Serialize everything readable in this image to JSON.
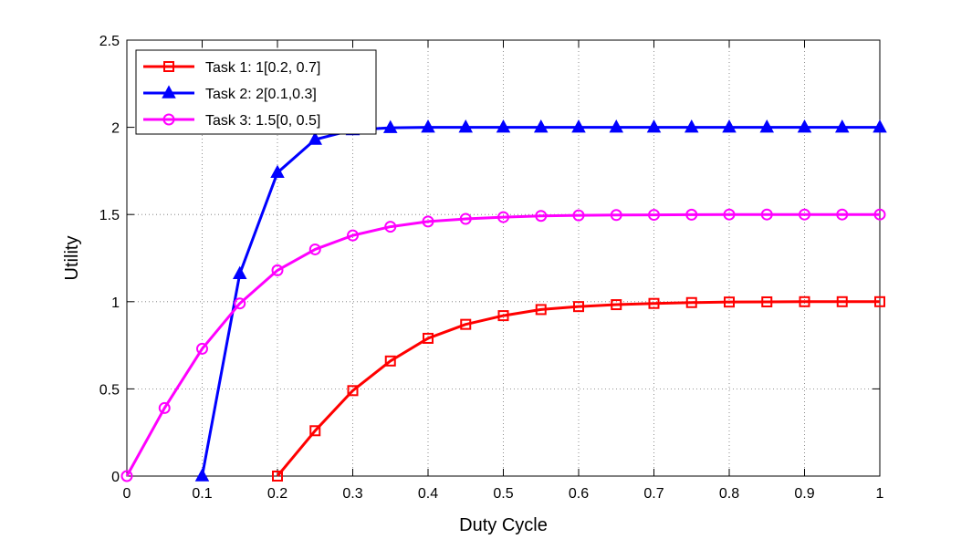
{
  "chart_data": {
    "type": "line",
    "xlabel": "Duty Cycle",
    "ylabel": "Utility",
    "xlim": [
      0,
      1
    ],
    "ylim": [
      0,
      2.5
    ],
    "x_ticks": [
      "0",
      "0.1",
      "0.2",
      "0.3",
      "0.4",
      "0.5",
      "0.6",
      "0.7",
      "0.8",
      "0.9",
      "1"
    ],
    "y_ticks": [
      "0",
      "0.5",
      "1",
      "1.5",
      "2",
      "2.5"
    ],
    "grid": true,
    "legend_position": "top-left",
    "series": [
      {
        "name": "Task 1: 1[0.2, 0.7]",
        "color": "#ff0000",
        "marker": "square",
        "x": [
          0.2,
          0.25,
          0.3,
          0.35,
          0.4,
          0.45,
          0.5,
          0.55,
          0.6,
          0.65,
          0.7,
          0.75,
          0.8,
          0.85,
          0.9,
          0.95,
          1.0
        ],
        "y": [
          0,
          0.26,
          0.49,
          0.66,
          0.79,
          0.87,
          0.92,
          0.955,
          0.972,
          0.983,
          0.99,
          0.995,
          0.998,
          0.999,
          1.0,
          1.0,
          1.0
        ]
      },
      {
        "name": "Task 2: 2[0.1,0.3]",
        "color": "#0000ff",
        "marker": "triangle",
        "x": [
          0.1,
          0.15,
          0.2,
          0.25,
          0.3,
          0.35,
          0.4,
          0.45,
          0.5,
          0.55,
          0.6,
          0.65,
          0.7,
          0.75,
          0.8,
          0.85,
          0.9,
          0.95,
          1.0
        ],
        "y": [
          0,
          1.16,
          1.74,
          1.93,
          1.985,
          1.997,
          2.0,
          2.0,
          2.0,
          2.0,
          2.0,
          2.0,
          2.0,
          2.0,
          2.0,
          2.0,
          2.0,
          2.0,
          2.0
        ]
      },
      {
        "name": "Task 3: 1.5[0, 0.5]",
        "color": "#ff00ff",
        "marker": "circle",
        "x": [
          0,
          0.05,
          0.1,
          0.15,
          0.2,
          0.25,
          0.3,
          0.35,
          0.4,
          0.45,
          0.5,
          0.55,
          0.6,
          0.65,
          0.7,
          0.75,
          0.8,
          0.85,
          0.9,
          0.95,
          1.0
        ],
        "y": [
          0,
          0.39,
          0.73,
          0.99,
          1.18,
          1.3,
          1.38,
          1.43,
          1.46,
          1.475,
          1.485,
          1.492,
          1.495,
          1.497,
          1.498,
          1.499,
          1.5,
          1.5,
          1.5,
          1.5,
          1.5
        ]
      }
    ]
  }
}
